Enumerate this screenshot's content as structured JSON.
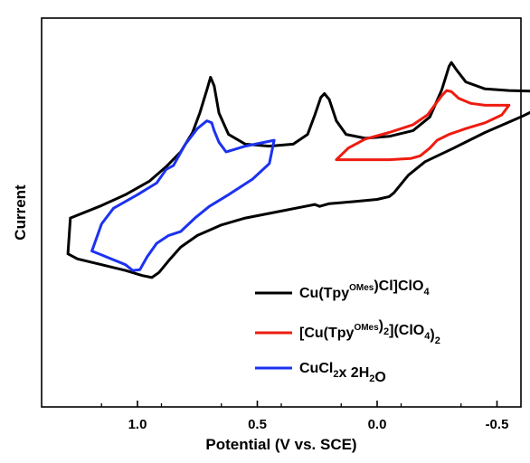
{
  "chart_data": {
    "type": "line",
    "title": "",
    "xlabel": "Potential (V vs. SCE)",
    "ylabel": "Current",
    "x_axis_reversed": true,
    "xlim": [
      1.4,
      -0.6
    ],
    "x_ticks": [
      {
        "value": 1.0,
        "label": "1.0"
      },
      {
        "value": 0.5,
        "label": "0.5"
      },
      {
        "value": 0.0,
        "label": "0.0"
      },
      {
        "value": -0.5,
        "label": "-0.5"
      }
    ],
    "y_ticks_shown": false,
    "y_units": "arbitrary",
    "grid": false,
    "legend": {
      "position": "bottom-right",
      "entries": [
        {
          "series": 0,
          "parts": [
            "Cu(Tpy",
            "^OMes",
            ")Cl]ClO",
            "_4"
          ]
        },
        {
          "series": 1,
          "parts": [
            "[Cu(Tpy",
            "^OMes",
            ")",
            "_2",
            "](ClO",
            "_4",
            ")",
            "_2"
          ]
        },
        {
          "series": 2,
          "parts": [
            "CuCl",
            "_2",
            "x 2H",
            "_2",
            "O"
          ]
        }
      ]
    },
    "series": [
      {
        "name": "Cu(TpyOMes)Cl]ClO4",
        "color": "#000000",
        "points": [
          [
            1.28,
            0.3
          ],
          [
            1.15,
            0.62
          ],
          [
            1.05,
            0.9
          ],
          [
            0.95,
            1.25
          ],
          [
            0.88,
            1.62
          ],
          [
            0.82,
            2.0
          ],
          [
            0.77,
            2.5
          ],
          [
            0.74,
            3.0
          ],
          [
            0.71,
            3.6
          ],
          [
            0.695,
            3.92
          ],
          [
            0.68,
            3.7
          ],
          [
            0.66,
            3.0
          ],
          [
            0.62,
            2.45
          ],
          [
            0.55,
            2.2
          ],
          [
            0.45,
            2.15
          ],
          [
            0.35,
            2.2
          ],
          [
            0.29,
            2.45
          ],
          [
            0.26,
            2.95
          ],
          [
            0.235,
            3.4
          ],
          [
            0.22,
            3.5
          ],
          [
            0.2,
            3.35
          ],
          [
            0.17,
            2.8
          ],
          [
            0.13,
            2.45
          ],
          [
            0.05,
            2.35
          ],
          [
            -0.05,
            2.4
          ],
          [
            -0.15,
            2.55
          ],
          [
            -0.22,
            2.9
          ],
          [
            -0.27,
            3.6
          ],
          [
            -0.3,
            4.2
          ],
          [
            -0.31,
            4.3
          ],
          [
            -0.33,
            4.12
          ],
          [
            -0.37,
            3.8
          ],
          [
            -0.45,
            3.62
          ],
          [
            -0.55,
            3.58
          ],
          [
            -0.65,
            3.56
          ],
          [
            -0.75,
            3.52
          ],
          [
            -0.75,
            3.52
          ],
          [
            -0.7,
            3.2
          ],
          [
            -0.6,
            2.9
          ],
          [
            -0.45,
            2.5
          ],
          [
            -0.32,
            2.1
          ],
          [
            -0.2,
            1.75
          ],
          [
            -0.13,
            1.4
          ],
          [
            -0.09,
            1.1
          ],
          [
            -0.07,
            0.95
          ],
          [
            -0.05,
            0.85
          ],
          [
            0.0,
            0.78
          ],
          [
            0.1,
            0.72
          ],
          [
            0.2,
            0.67
          ],
          [
            0.24,
            0.6
          ],
          [
            0.26,
            0.65
          ],
          [
            0.3,
            0.6
          ],
          [
            0.4,
            0.48
          ],
          [
            0.55,
            0.3
          ],
          [
            0.65,
            0.12
          ],
          [
            0.75,
            -0.15
          ],
          [
            0.82,
            -0.45
          ],
          [
            0.87,
            -0.8
          ],
          [
            0.91,
            -1.1
          ],
          [
            0.94,
            -1.23
          ],
          [
            0.98,
            -1.18
          ],
          [
            1.05,
            -1.05
          ],
          [
            1.15,
            -0.9
          ],
          [
            1.25,
            -0.75
          ],
          [
            1.29,
            -0.62
          ],
          [
            1.28,
            0.3
          ]
        ]
      },
      {
        "name": "[Cu(TpyOMes)2](ClO4)2",
        "color": "#ee1c10",
        "points": [
          [
            0.17,
            1.8
          ],
          [
            0.12,
            2.1
          ],
          [
            0.05,
            2.33
          ],
          [
            -0.05,
            2.5
          ],
          [
            -0.15,
            2.7
          ],
          [
            -0.21,
            2.95
          ],
          [
            -0.24,
            3.2
          ],
          [
            -0.27,
            3.45
          ],
          [
            -0.29,
            3.58
          ],
          [
            -0.31,
            3.55
          ],
          [
            -0.34,
            3.38
          ],
          [
            -0.39,
            3.25
          ],
          [
            -0.45,
            3.2
          ],
          [
            -0.55,
            3.2
          ],
          [
            -0.55,
            3.2
          ],
          [
            -0.52,
            2.95
          ],
          [
            -0.45,
            2.75
          ],
          [
            -0.37,
            2.6
          ],
          [
            -0.3,
            2.45
          ],
          [
            -0.25,
            2.3
          ],
          [
            -0.22,
            2.1
          ],
          [
            -0.18,
            1.9
          ],
          [
            -0.14,
            1.83
          ],
          [
            -0.05,
            1.8
          ],
          [
            0.05,
            1.8
          ],
          [
            0.17,
            1.8
          ]
        ]
      },
      {
        "name": "CuCl2x 2H2O",
        "color": "#1c32f0",
        "points": [
          [
            0.43,
            2.3
          ],
          [
            0.55,
            2.15
          ],
          [
            0.63,
            2.0
          ],
          [
            0.66,
            2.25
          ],
          [
            0.68,
            2.55
          ],
          [
            0.69,
            2.75
          ],
          [
            0.71,
            2.8
          ],
          [
            0.75,
            2.6
          ],
          [
            0.8,
            2.2
          ],
          [
            0.85,
            1.65
          ],
          [
            0.88,
            1.55
          ],
          [
            0.92,
            1.2
          ],
          [
            1.0,
            0.9
          ],
          [
            1.1,
            0.55
          ],
          [
            1.15,
            0.15
          ],
          [
            1.19,
            -0.55
          ],
          [
            1.15,
            -0.65
          ],
          [
            1.05,
            -0.9
          ],
          [
            1.02,
            -1.05
          ],
          [
            0.99,
            -1.03
          ],
          [
            0.96,
            -0.7
          ],
          [
            0.92,
            -0.35
          ],
          [
            0.87,
            -0.15
          ],
          [
            0.82,
            -0.05
          ],
          [
            0.76,
            0.3
          ],
          [
            0.7,
            0.6
          ],
          [
            0.62,
            0.9
          ],
          [
            0.52,
            1.3
          ],
          [
            0.45,
            1.7
          ],
          [
            0.43,
            2.3
          ]
        ]
      }
    ]
  }
}
